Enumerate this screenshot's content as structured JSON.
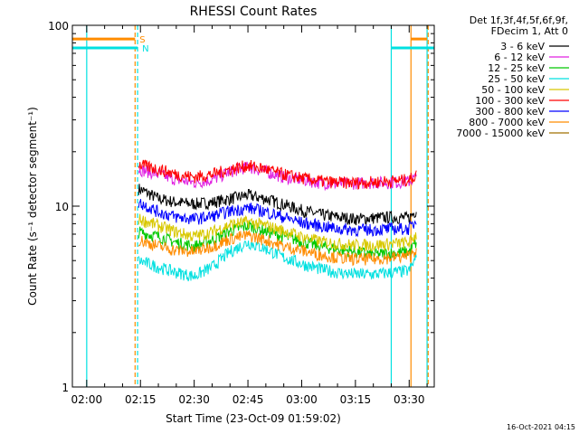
{
  "chart_data": {
    "type": "line",
    "title": "RHESSI Count Rates",
    "xlabel": "Start Time (23-Oct-09 01:59:02)",
    "ylabel": "Count Rate (s⁻¹ detector segment⁻¹)",
    "yscale": "log",
    "ylim": [
      1,
      100
    ],
    "xlim_minutes": [
      -4,
      97
    ],
    "xticks": [
      {
        "label": "02:00",
        "min": 0
      },
      {
        "label": "02:15",
        "min": 15
      },
      {
        "label": "02:30",
        "min": 30
      },
      {
        "label": "02:45",
        "min": 45
      },
      {
        "label": "03:00",
        "min": 60
      },
      {
        "label": "03:15",
        "min": 75
      },
      {
        "label": "03:30",
        "min": 90
      }
    ],
    "yticks": [
      {
        "label": "1",
        "value": 1
      },
      {
        "label": "10",
        "value": 10
      },
      {
        "label": "100",
        "value": 100
      }
    ],
    "grid": false,
    "legend_position": "top-right",
    "legend_header": [
      "Det 1f,3f,4f,5f,6f,9f,",
      "FDecim 1, Att 0"
    ],
    "series": [
      {
        "name": "3 - 6 keV",
        "color": "#000000",
        "x": [
          14.5,
          20,
          25,
          30,
          35,
          40,
          45,
          50,
          55,
          60,
          65,
          70,
          75,
          80,
          85,
          90,
          92
        ],
        "y": [
          12.5,
          11,
          10.5,
          10.3,
          10.5,
          11,
          11.5,
          11,
          10.2,
          9.5,
          9,
          8.7,
          8.5,
          8.6,
          8.7,
          8.6,
          9.5
        ]
      },
      {
        "name": "6 - 12 keV",
        "color": "#e020e0",
        "x": [
          14.5,
          20,
          25,
          30,
          35,
          40,
          45,
          50,
          55,
          60,
          65,
          70,
          75,
          80,
          85,
          90,
          92
        ],
        "y": [
          16,
          15,
          14,
          13.5,
          14,
          15.5,
          16.5,
          15.5,
          14.5,
          14,
          13.5,
          13.3,
          13.4,
          13.5,
          13.5,
          13.7,
          14.5
        ]
      },
      {
        "name": "12 - 25 keV",
        "color": "#00c800",
        "x": [
          14.5,
          20,
          25,
          30,
          35,
          40,
          45,
          50,
          55,
          60,
          65,
          70,
          75,
          80,
          85,
          90,
          92
        ],
        "y": [
          7.2,
          6.8,
          6.3,
          6.0,
          6.5,
          7.3,
          7.8,
          7.3,
          6.8,
          6.4,
          6.0,
          5.8,
          5.6,
          5.4,
          5.5,
          5.6,
          6.3
        ]
      },
      {
        "name": "25 - 50 keV",
        "color": "#00e0e0",
        "x": [
          14.5,
          20,
          25,
          30,
          35,
          40,
          45,
          50,
          55,
          60,
          65,
          70,
          75,
          80,
          85,
          90,
          92
        ],
        "y": [
          5.0,
          4.6,
          4.3,
          4.1,
          4.6,
          5.6,
          6.3,
          5.8,
          5.2,
          4.8,
          4.5,
          4.3,
          4.2,
          4.2,
          4.3,
          4.4,
          5.2
        ]
      },
      {
        "name": "50 - 100 keV",
        "color": "#d8c800",
        "x": [
          14.5,
          20,
          25,
          30,
          35,
          40,
          45,
          50,
          55,
          60,
          65,
          70,
          75,
          80,
          85,
          90,
          92
        ],
        "y": [
          8.5,
          7.8,
          7.2,
          6.8,
          7.2,
          7.9,
          8.2,
          7.8,
          7.3,
          6.8,
          6.4,
          6.2,
          6.1,
          6.1,
          6.2,
          6.3,
          7.0
        ]
      },
      {
        "name": "100 - 300 keV",
        "color": "#ff0000",
        "x": [
          14.5,
          20,
          25,
          30,
          35,
          40,
          45,
          50,
          55,
          60,
          65,
          70,
          75,
          80,
          85,
          90,
          92
        ],
        "y": [
          17,
          16,
          15,
          14.5,
          15,
          16,
          16.8,
          16,
          15,
          14.3,
          13.8,
          13.5,
          13.5,
          13.6,
          13.8,
          14.0,
          14.8
        ]
      },
      {
        "name": "300 - 800 keV",
        "color": "#0000ff",
        "x": [
          14.5,
          20,
          25,
          30,
          35,
          40,
          45,
          50,
          55,
          60,
          65,
          70,
          75,
          80,
          85,
          90,
          92
        ],
        "y": [
          10.5,
          9.3,
          8.7,
          8.5,
          8.8,
          9.4,
          9.8,
          9.3,
          8.7,
          8.1,
          7.8,
          7.5,
          7.4,
          7.4,
          7.5,
          7.5,
          8.3
        ]
      },
      {
        "name": "800 - 7000 keV",
        "color": "#ff8c00",
        "x": [
          14.5,
          20,
          25,
          30,
          35,
          40,
          45,
          50,
          55,
          60,
          65,
          70,
          75,
          80,
          85,
          90,
          92
        ],
        "y": [
          6.5,
          6.0,
          5.7,
          5.6,
          6.0,
          6.6,
          6.9,
          6.5,
          6.0,
          5.7,
          5.4,
          5.2,
          5.1,
          5.1,
          5.2,
          5.3,
          5.8
        ]
      },
      {
        "name": "7000 - 15000 keV",
        "color": "#a07000",
        "x": [],
        "y": []
      }
    ],
    "state_bars": [
      {
        "label": "S",
        "color": "#ff8c00",
        "y": 84,
        "segments": [
          [
            -4,
            13.5
          ],
          [
            90.5,
            95
          ]
        ]
      },
      {
        "label": "N",
        "color": "#00e0e0",
        "y": 75,
        "segments": [
          [
            -4,
            14.2
          ],
          [
            85,
            97
          ]
        ]
      }
    ],
    "vertical_markers": [
      {
        "min": 0,
        "color": "#00e0e0",
        "dashed": false
      },
      {
        "min": 13.5,
        "color": "#ff8c00",
        "dashed": true
      },
      {
        "min": 14.2,
        "color": "#00e0e0",
        "dashed": true
      },
      {
        "min": 85,
        "color": "#00e0e0",
        "dashed": false
      },
      {
        "min": 90.5,
        "color": "#ff8c00",
        "dashed": false
      },
      {
        "min": 95,
        "color": "#00e0e0",
        "dashed": false
      },
      {
        "min": 95.3,
        "color": "#ff8c00",
        "dashed": true
      }
    ],
    "footer_timestamp": "16-Oct-2021 04:15"
  }
}
